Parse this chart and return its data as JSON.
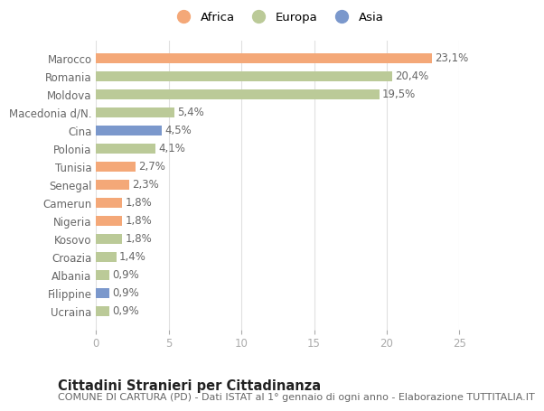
{
  "countries": [
    "Marocco",
    "Romania",
    "Moldova",
    "Macedonia d/N.",
    "Cina",
    "Polonia",
    "Tunisia",
    "Senegal",
    "Camerun",
    "Nigeria",
    "Kosovo",
    "Croazia",
    "Albania",
    "Filippine",
    "Ucraina"
  ],
  "values": [
    23.1,
    20.4,
    19.5,
    5.4,
    4.5,
    4.1,
    2.7,
    2.3,
    1.8,
    1.8,
    1.8,
    1.4,
    0.9,
    0.9,
    0.9
  ],
  "labels": [
    "23,1%",
    "20,4%",
    "19,5%",
    "5,4%",
    "4,5%",
    "4,1%",
    "2,7%",
    "2,3%",
    "1,8%",
    "1,8%",
    "1,8%",
    "1,4%",
    "0,9%",
    "0,9%",
    "0,9%"
  ],
  "continents": [
    "Africa",
    "Europa",
    "Europa",
    "Europa",
    "Asia",
    "Europa",
    "Africa",
    "Africa",
    "Africa",
    "Africa",
    "Europa",
    "Europa",
    "Europa",
    "Asia",
    "Europa"
  ],
  "colors": {
    "Africa": "#F4A878",
    "Europa": "#BBCA98",
    "Asia": "#7B98CC"
  },
  "legend_labels": [
    "Africa",
    "Europa",
    "Asia"
  ],
  "legend_colors": [
    "#F4A878",
    "#BBCA98",
    "#7B98CC"
  ],
  "title": "Cittadini Stranieri per Cittadinanza",
  "subtitle": "COMUNE DI CARTURA (PD) - Dati ISTAT al 1° gennaio di ogni anno - Elaborazione TUTTITALIA.IT",
  "xlim": [
    0,
    25
  ],
  "xticks": [
    0,
    5,
    10,
    15,
    20,
    25
  ],
  "background_color": "#ffffff",
  "bar_height": 0.55,
  "label_fontsize": 8.5,
  "tick_fontsize": 8.5,
  "title_fontsize": 10.5,
  "subtitle_fontsize": 8.0
}
